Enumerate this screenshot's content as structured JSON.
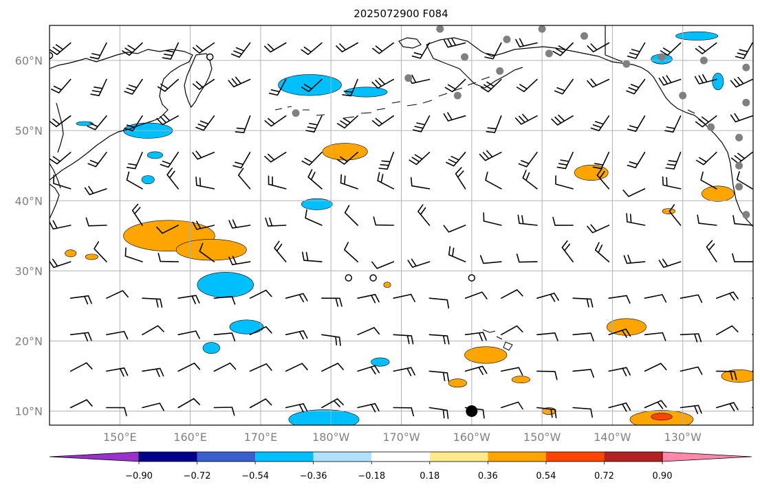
{
  "figure": {
    "title": "2025072900 F084"
  },
  "map": {
    "lon_range": [
      140,
      240
    ],
    "lat_range": [
      8,
      65
    ],
    "lat_ticks": [
      {
        "value": 10,
        "label": "10°N"
      },
      {
        "value": 20,
        "label": "20°N"
      },
      {
        "value": 30,
        "label": "30°N"
      },
      {
        "value": 40,
        "label": "40°N"
      },
      {
        "value": 50,
        "label": "50°N"
      },
      {
        "value": 60,
        "label": "60°N"
      }
    ],
    "lon_ticks": [
      {
        "value": 150,
        "label": "150°E"
      },
      {
        "value": 160,
        "label": "160°E"
      },
      {
        "value": 170,
        "label": "170°E"
      },
      {
        "value": 180,
        "label": "180°W"
      },
      {
        "value": 190,
        "label": "170°W"
      },
      {
        "value": 200,
        "label": "160°W"
      },
      {
        "value": 210,
        "label": "150°W"
      },
      {
        "value": 220,
        "label": "140°W"
      },
      {
        "value": 230,
        "label": "130°W"
      }
    ],
    "gridlines": true,
    "grid_color": "#b0b0b0",
    "land_outline_color": "#000000",
    "wind_barb_color": "#000000",
    "station_marker_color": "#808080"
  },
  "colorbar": {
    "extend": "both",
    "boundaries": [
      -0.9,
      -0.72,
      -0.54,
      -0.36,
      -0.18,
      0.18,
      0.36,
      0.54,
      0.72,
      0.9
    ],
    "labels": [
      "−0.90",
      "−0.72",
      "−0.54",
      "−0.36",
      "−0.18",
      "0.18",
      "0.36",
      "0.54",
      "0.72",
      "0.90"
    ],
    "colors": [
      "#9932cc",
      "#00008b",
      "#3a5fcd",
      "#00bfff",
      "#b0e2ff",
      "#ffffff",
      "#ffeb8c",
      "#ffa500",
      "#ff4500",
      "#b22222",
      "#ff88aa"
    ]
  },
  "contour_fields": {
    "positive": [
      {
        "lon": 157,
        "lat": 35,
        "rx": 6.5,
        "ry": 2.2,
        "level": 0.45
      },
      {
        "lon": 163,
        "lat": 33,
        "rx": 5,
        "ry": 1.5,
        "level": 0.45
      },
      {
        "lon": 182,
        "lat": 47,
        "rx": 3.2,
        "ry": 1.2,
        "level": 0.45
      },
      {
        "lon": 217,
        "lat": 44,
        "rx": 2.4,
        "ry": 1.1,
        "level": 0.45
      },
      {
        "lon": 235,
        "lat": 41,
        "rx": 2.3,
        "ry": 1.1,
        "level": 0.45
      },
      {
        "lon": 202,
        "lat": 18,
        "rx": 3,
        "ry": 1.2,
        "level": 0.45
      },
      {
        "lon": 222,
        "lat": 22,
        "rx": 2.8,
        "ry": 1.2,
        "level": 0.45
      },
      {
        "lon": 238,
        "lat": 15,
        "rx": 2.5,
        "ry": 0.9,
        "level": 0.45
      },
      {
        "lon": 227,
        "lat": 8.8,
        "rx": 4.5,
        "ry": 1.3,
        "level": 0.45
      },
      {
        "lon": 227,
        "lat": 9.2,
        "rx": 1.5,
        "ry": 0.5,
        "level": 0.6
      },
      {
        "lon": 143,
        "lat": 32.5,
        "rx": 0.8,
        "ry": 0.5,
        "level": 0.45
      },
      {
        "lon": 146,
        "lat": 32,
        "rx": 0.9,
        "ry": 0.4,
        "level": 0.45
      },
      {
        "lon": 198,
        "lat": 14,
        "rx": 1.3,
        "ry": 0.6,
        "level": 0.45
      },
      {
        "lon": 207,
        "lat": 14.5,
        "rx": 1.3,
        "ry": 0.5,
        "level": 0.45
      },
      {
        "lon": 188,
        "lat": 28,
        "rx": 0.5,
        "ry": 0.4,
        "level": 0.45
      },
      {
        "lon": 228,
        "lat": 38.5,
        "rx": 0.9,
        "ry": 0.4,
        "level": 0.45
      },
      {
        "lon": 211,
        "lat": 10,
        "rx": 1,
        "ry": 0.5,
        "level": 0.45
      }
    ],
    "negative": [
      {
        "lon": 154,
        "lat": 50,
        "rx": 3.5,
        "ry": 1.1,
        "level": -0.4
      },
      {
        "lon": 177,
        "lat": 56.5,
        "rx": 4.5,
        "ry": 1.5,
        "level": -0.4
      },
      {
        "lon": 185,
        "lat": 55.5,
        "rx": 3,
        "ry": 0.7,
        "level": -0.4
      },
      {
        "lon": 178,
        "lat": 39.5,
        "rx": 2.2,
        "ry": 0.8,
        "level": -0.4
      },
      {
        "lon": 165,
        "lat": 28,
        "rx": 4,
        "ry": 1.8,
        "level": -0.4
      },
      {
        "lon": 168,
        "lat": 22,
        "rx": 2.4,
        "ry": 1.0,
        "level": -0.4
      },
      {
        "lon": 163,
        "lat": 19,
        "rx": 1.2,
        "ry": 0.8,
        "level": -0.4
      },
      {
        "lon": 187,
        "lat": 17,
        "rx": 1.3,
        "ry": 0.6,
        "level": -0.4
      },
      {
        "lon": 179,
        "lat": 8.8,
        "rx": 5,
        "ry": 1.4,
        "level": -0.4
      },
      {
        "lon": 154,
        "lat": 43,
        "rx": 0.9,
        "ry": 0.6,
        "level": -0.4
      },
      {
        "lon": 155,
        "lat": 46.5,
        "rx": 1.1,
        "ry": 0.5,
        "level": -0.4
      },
      {
        "lon": 145,
        "lat": 51,
        "rx": 1.2,
        "ry": 0.3,
        "level": -0.4
      },
      {
        "lon": 232,
        "lat": 63.5,
        "rx": 3,
        "ry": 0.6,
        "level": -0.4
      },
      {
        "lon": 227,
        "lat": 60.2,
        "rx": 1.5,
        "ry": 0.7,
        "level": -0.4
      },
      {
        "lon": 235,
        "lat": 57,
        "rx": 0.8,
        "ry": 1.2,
        "level": -0.4
      }
    ]
  },
  "station_markers": [
    {
      "lon": 195.5,
      "lat": 64.5
    },
    {
      "lon": 205,
      "lat": 63
    },
    {
      "lon": 210,
      "lat": 64.5
    },
    {
      "lon": 216,
      "lat": 63.5
    },
    {
      "lon": 199,
      "lat": 60.5
    },
    {
      "lon": 211,
      "lat": 61
    },
    {
      "lon": 204,
      "lat": 58.5
    },
    {
      "lon": 191,
      "lat": 57.5
    },
    {
      "lon": 198,
      "lat": 55
    },
    {
      "lon": 175,
      "lat": 52.5
    },
    {
      "lon": 222,
      "lat": 59.5
    },
    {
      "lon": 227,
      "lat": 60.5
    },
    {
      "lon": 233,
      "lat": 60
    },
    {
      "lon": 239,
      "lat": 59
    },
    {
      "lon": 230,
      "lat": 55
    },
    {
      "lon": 239,
      "lat": 54
    },
    {
      "lon": 234,
      "lat": 50.5
    },
    {
      "lon": 238,
      "lat": 49
    },
    {
      "lon": 238,
      "lat": 45
    },
    {
      "lon": 238,
      "lat": 42
    },
    {
      "lon": 239,
      "lat": 38
    }
  ],
  "open_circles": [
    {
      "lon": 182.5,
      "lat": 29
    },
    {
      "lon": 186,
      "lat": 29
    },
    {
      "lon": 200,
      "lat": 29
    },
    {
      "lon": 162.8,
      "lat": 60.5
    },
    {
      "lon": 140,
      "lat": 60.7
    }
  ],
  "large_dot": {
    "lon": 200,
    "lat": 10
  }
}
